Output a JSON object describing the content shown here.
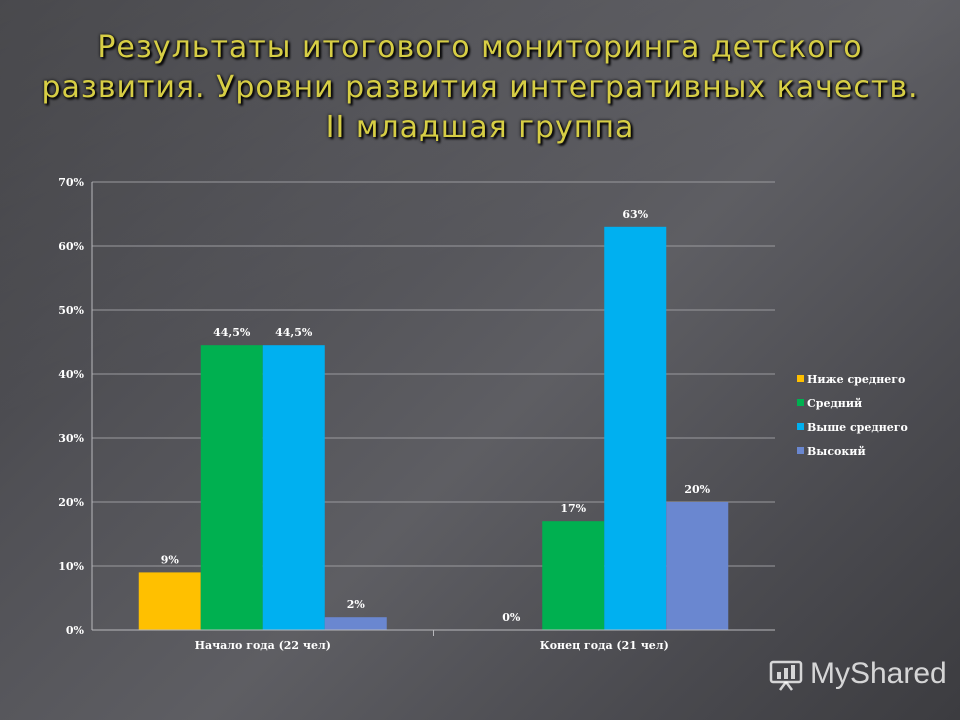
{
  "title_lines": [
    "Результаты итогового мониторинга  детского",
    "развития. Уровни развития интегративных качеств.",
    "II младшая группа"
  ],
  "watermark": {
    "text": "MyShared",
    "icon": "presentation-board-icon"
  },
  "chart_data": {
    "type": "bar",
    "categories": [
      "Начало года (22 чел)",
      "Конец года (21 чел)"
    ],
    "series": [
      {
        "name": "Ниже среднего",
        "color": "#ffc000",
        "values": [
          9,
          0
        ],
        "labels": [
          "9%",
          "0%"
        ]
      },
      {
        "name": "Средний",
        "color": "#00b050",
        "values": [
          44.5,
          17
        ],
        "labels": [
          "44,5%",
          "17%"
        ]
      },
      {
        "name": "Выше среднего",
        "color": "#00b0f0",
        "values": [
          44.5,
          63
        ],
        "labels": [
          "44,5%",
          "63%"
        ]
      },
      {
        "name": "Высокий",
        "color": "#6a87d0",
        "values": [
          2,
          20
        ],
        "labels": [
          "2%",
          "20%"
        ]
      }
    ],
    "ylim": [
      0,
      70
    ],
    "yticks": [
      0,
      10,
      20,
      30,
      40,
      50,
      60,
      70
    ],
    "ytick_labels": [
      "0%",
      "10%",
      "20%",
      "30%",
      "40%",
      "50%",
      "60%",
      "70%"
    ],
    "grid": true,
    "legend": "right"
  }
}
